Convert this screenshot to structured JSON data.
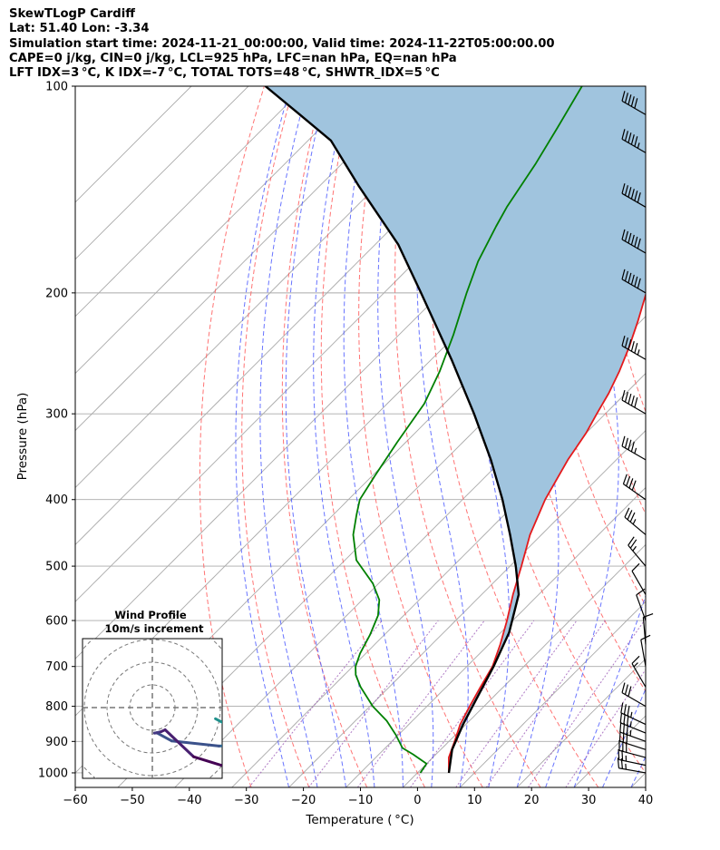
{
  "header": {
    "line1": "SkewTLogP Cardiff",
    "line2": "Lat: 51.40   Lon: -3.34",
    "line3": "Simulation start time: 2024-11-21_00:00:00, Valid time: 2024-11-22T05:00:00.00",
    "line4": "CAPE=0 j/kg, CIN=0 j/kg, LCL=925 hPa, LFC=nan hPa, EQ=nan hPa",
    "line5": "LFT IDX=3 °C, K IDX=-7 °C, TOTAL TOTS=48 °C, SHWTR_IDX=5 °C"
  },
  "chart_data": {
    "type": "line",
    "xlabel": "Temperature ( °C)",
    "ylabel": "Pressure (hPa)",
    "xlim": [
      -60,
      40
    ],
    "ylim": [
      1050,
      100
    ],
    "y_scale": "log",
    "skew": "skew-T",
    "x_ticks": [
      "−60",
      "−50",
      "−40",
      "−30",
      "−20",
      "−10",
      "0",
      "10",
      "20",
      "30",
      "40"
    ],
    "y_ticks": [
      "100",
      "200",
      "300",
      "400",
      "500",
      "600",
      "700",
      "800",
      "900",
      "1000"
    ],
    "y_tick_values": [
      100,
      200,
      300,
      400,
      500,
      600,
      700,
      800,
      900,
      1000
    ],
    "grid": true,
    "colors": {
      "temperature": "#e41a1c",
      "dewpoint": "#008000",
      "parcel": "#000000",
      "shade": "#a0c4de",
      "dry_adiabat": "#ff5c5c",
      "moist_adiabat": "#4d5cff",
      "isotherm": "#aaaaaa",
      "mixing_ratio": "#9b59b6"
    },
    "series": [
      {
        "key": "temperature",
        "points": [
          [
            5.5,
            1000
          ],
          [
            2.8,
            950
          ],
          [
            1.0,
            900
          ],
          [
            -1.0,
            850
          ],
          [
            -2.5,
            800
          ],
          [
            -4.0,
            750
          ],
          [
            -5.5,
            700
          ],
          [
            -8.0,
            650
          ],
          [
            -11.0,
            600
          ],
          [
            -14.5,
            550
          ],
          [
            -18.0,
            500
          ],
          [
            -22.0,
            450
          ],
          [
            -25.5,
            400
          ],
          [
            -28.5,
            350
          ],
          [
            -30.0,
            320
          ],
          [
            -31.5,
            300
          ],
          [
            -33.0,
            280
          ],
          [
            -35.0,
            260
          ],
          [
            -37.5,
            240
          ],
          [
            -40.5,
            220
          ],
          [
            -44.0,
            200
          ],
          [
            -47.0,
            180
          ],
          [
            -50.0,
            160
          ],
          [
            -52.5,
            140
          ],
          [
            -55.0,
            120
          ],
          [
            -57.0,
            110
          ],
          [
            -58.5,
            100
          ]
        ]
      },
      {
        "key": "dewpoint",
        "points": [
          [
            0.5,
            1000
          ],
          [
            0.0,
            970
          ],
          [
            -4.0,
            940
          ],
          [
            -7.0,
            920
          ],
          [
            -10.5,
            880
          ],
          [
            -14.5,
            840
          ],
          [
            -19.5,
            800
          ],
          [
            -25.0,
            750
          ],
          [
            -28.0,
            720
          ],
          [
            -29.5,
            700
          ],
          [
            -31.0,
            670
          ],
          [
            -32.5,
            630
          ],
          [
            -34.5,
            590
          ],
          [
            -37.0,
            560
          ],
          [
            -41.0,
            530
          ],
          [
            -48.0,
            490
          ],
          [
            -53.0,
            450
          ],
          [
            -56.0,
            420
          ],
          [
            -58.0,
            400
          ],
          [
            -59.5,
            370
          ],
          [
            -61.5,
            330
          ],
          [
            -63.5,
            290
          ],
          [
            -66.5,
            260
          ],
          [
            -70.5,
            230
          ],
          [
            -75.5,
            200
          ],
          [
            -79.0,
            180
          ],
          [
            -82.0,
            160
          ],
          [
            -83.5,
            150
          ],
          [
            -86.0,
            130
          ],
          [
            -88.5,
            115
          ],
          [
            -91.5,
            100
          ]
        ]
      },
      {
        "key": "parcel",
        "points": [
          [
            5.5,
            1000
          ],
          [
            2.0,
            925
          ],
          [
            -0.5,
            850
          ],
          [
            -3.6,
            750
          ],
          [
            -5.3,
            700
          ],
          [
            -8.5,
            625
          ],
          [
            -13.5,
            550
          ],
          [
            -19.0,
            500
          ],
          [
            -25.5,
            450
          ],
          [
            -33.0,
            400
          ],
          [
            -42.0,
            350
          ],
          [
            -53.0,
            300
          ],
          [
            -66.5,
            250
          ],
          [
            -83.5,
            200
          ],
          [
            -96.0,
            170
          ],
          [
            -113.0,
            140
          ],
          [
            -126.0,
            120
          ],
          [
            -136.0,
            110
          ],
          [
            -147.0,
            100
          ]
        ]
      }
    ],
    "winds": {
      "pressures": [
        1000,
        975,
        950,
        925,
        900,
        875,
        850,
        800,
        750,
        700,
        650,
        600,
        550,
        500,
        450,
        400,
        350,
        300,
        250,
        200,
        175,
        150,
        125,
        110
      ],
      "speeds_kt": [
        25,
        28,
        30,
        32,
        35,
        35,
        35,
        30,
        15,
        10,
        10,
        10,
        10,
        25,
        35,
        40,
        45,
        50,
        55,
        60,
        60,
        60,
        55,
        50
      ],
      "dir_deg": [
        280,
        282,
        285,
        288,
        290,
        292,
        295,
        300,
        330,
        350,
        355,
        340,
        330,
        320,
        310,
        305,
        300,
        300,
        300,
        300,
        300,
        300,
        300,
        300
      ]
    },
    "inset": {
      "title": "Wind Profile",
      "subtitle": "10m/s increment"
    }
  }
}
